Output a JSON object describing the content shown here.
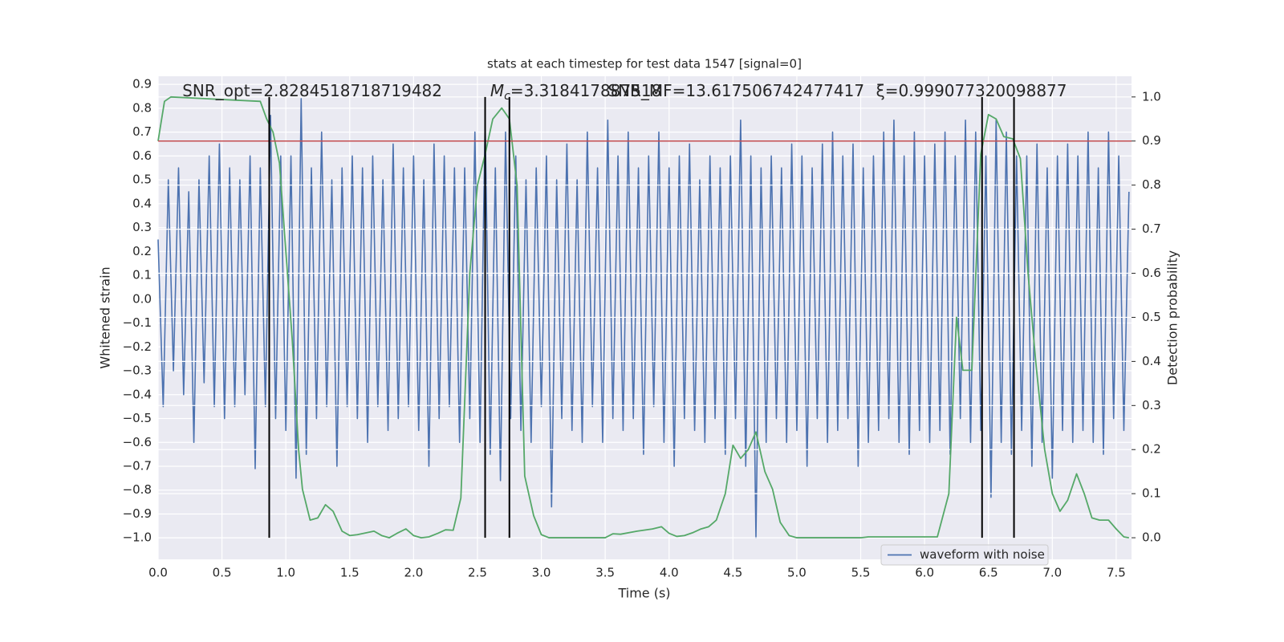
{
  "chart_data": {
    "type": "line",
    "title": "stats at each timestep for test data 1547 [signal=0]",
    "xlabel": "Time (s)",
    "ylabel": "Whitened strain",
    "y2label": "Detection probability",
    "xlim": [
      0,
      7.62
    ],
    "ylim": [
      -1.09,
      0.934
    ],
    "y2lim": [
      -0.049,
      1.047
    ],
    "xticks": [
      {
        "value": 0,
        "label": "0.0"
      },
      0.5,
      {
        "value": 1,
        "label": "1.0"
      },
      1.5,
      {
        "value": 2,
        "label": "2.0"
      },
      2.5,
      {
        "value": 3,
        "label": "3.0"
      },
      3.5,
      {
        "value": 4,
        "label": "4.0"
      },
      4.5,
      {
        "value": 5,
        "label": "5.0"
      },
      5.5,
      {
        "value": 6,
        "label": "6.0"
      },
      6.5,
      {
        "value": 7,
        "label": "7.0"
      },
      7.5
    ],
    "yticks": [
      {
        "value": -1,
        "label": "−1.0"
      },
      {
        "value": -0.9,
        "label": "−0.9"
      },
      {
        "value": -0.8,
        "label": "−0.8"
      },
      {
        "value": -0.7,
        "label": "−0.7"
      },
      {
        "value": -0.6,
        "label": "−0.6"
      },
      {
        "value": -0.5,
        "label": "−0.5"
      },
      {
        "value": -0.4,
        "label": "−0.4"
      },
      {
        "value": -0.3,
        "label": "−0.3"
      },
      {
        "value": -0.2,
        "label": "−0.2"
      },
      {
        "value": -0.1,
        "label": "−0.1"
      },
      {
        "value": 0,
        "label": "0.0"
      },
      0.1,
      0.2,
      0.3,
      0.4,
      0.5,
      0.6,
      0.7,
      0.8,
      0.9
    ],
    "y2ticks": [
      {
        "value": 0,
        "label": "0.0"
      },
      0.1,
      0.2,
      0.3,
      0.4,
      0.5,
      0.6,
      0.7,
      0.8,
      0.9,
      {
        "value": 1,
        "label": "1.0"
      }
    ],
    "grid": true,
    "legend": "lower right",
    "annotations": [
      {
        "text": "SNR_opt=2.8284518718719482",
        "x": 0.19
      },
      {
        "symbol": "M",
        "subscript": "c",
        "text": "=3.318417887518",
        "x": 2.6
      },
      {
        "text": "SNR_MF=13.617506742477417",
        "x": 3.52
      },
      {
        "text": "ξ=0.999077320098877",
        "x": 5.62
      }
    ],
    "hline": {
      "y": 0.9,
      "axis": "y2",
      "color": "#c44e52"
    },
    "vlines": {
      "x": [
        0.87,
        2.56,
        2.75,
        6.45,
        6.7
      ],
      "ymin": 0,
      "ymax": 1,
      "axis": "y2",
      "color": "#000000"
    },
    "series": [
      {
        "name": "waveform with noise",
        "color": "#4c72b0",
        "x": [
          0,
          0.04,
          0.08,
          0.12,
          0.16,
          0.2,
          0.24,
          0.28,
          0.32,
          0.36,
          0.4,
          0.44,
          0.48,
          0.52,
          0.56,
          0.6,
          0.64,
          0.68,
          0.72,
          0.76,
          0.8,
          0.84,
          0.88,
          0.92,
          0.96,
          1,
          1.04,
          1.08,
          1.12,
          1.16,
          1.2,
          1.24,
          1.28,
          1.32,
          1.36,
          1.4,
          1.44,
          1.48,
          1.52,
          1.56,
          1.6,
          1.64,
          1.68,
          1.72,
          1.76,
          1.8,
          1.84,
          1.88,
          1.92,
          1.96,
          2,
          2.04,
          2.08,
          2.12,
          2.16,
          2.2,
          2.24,
          2.28,
          2.32,
          2.36,
          2.4,
          2.44,
          2.48,
          2.52,
          2.56,
          2.6,
          2.64,
          2.68,
          2.72,
          2.76,
          2.8,
          2.84,
          2.88,
          2.92,
          2.96,
          3,
          3.04,
          3.08,
          3.12,
          3.16,
          3.2,
          3.24,
          3.28,
          3.32,
          3.36,
          3.4,
          3.44,
          3.48,
          3.52,
          3.56,
          3.6,
          3.64,
          3.68,
          3.72,
          3.76,
          3.8,
          3.84,
          3.88,
          3.92,
          3.96,
          4,
          4.04,
          4.08,
          4.12,
          4.16,
          4.2,
          4.24,
          4.28,
          4.32,
          4.36,
          4.4,
          4.44,
          4.48,
          4.52,
          4.56,
          4.6,
          4.64,
          4.68,
          4.72,
          4.76,
          4.8,
          4.84,
          4.88,
          4.92,
          4.96,
          5,
          5.04,
          5.08,
          5.12,
          5.16,
          5.2,
          5.24,
          5.28,
          5.32,
          5.36,
          5.4,
          5.44,
          5.48,
          5.52,
          5.56,
          5.6,
          5.64,
          5.68,
          5.72,
          5.76,
          5.8,
          5.84,
          5.88,
          5.92,
          5.96,
          6,
          6.04,
          6.08,
          6.12,
          6.16,
          6.2,
          6.24,
          6.28,
          6.32,
          6.36,
          6.4,
          6.44,
          6.48,
          6.52,
          6.56,
          6.6,
          6.64,
          6.68,
          6.72,
          6.76,
          6.8,
          6.84,
          6.88,
          6.92,
          6.96,
          7,
          7.04,
          7.08,
          7.12,
          7.16,
          7.2,
          7.24,
          7.28,
          7.32,
          7.36,
          7.4,
          7.44,
          7.48,
          7.52,
          7.56,
          7.6
        ],
        "values": [
          0.25,
          -0.45,
          0.5,
          -0.3,
          0.55,
          -0.4,
          0.45,
          -0.6,
          0.5,
          -0.35,
          0.6,
          -0.45,
          0.65,
          -0.5,
          0.55,
          -0.45,
          0.5,
          -0.4,
          0.6,
          -0.71,
          0.55,
          -0.45,
          0.77,
          -0.5,
          0.6,
          -0.55,
          0.6,
          -0.75,
          0.84,
          -0.65,
          0.55,
          -0.5,
          0.7,
          -0.45,
          0.5,
          -0.7,
          0.55,
          -0.45,
          0.6,
          -0.5,
          0.55,
          -0.6,
          0.6,
          -0.45,
          0.5,
          -0.55,
          0.65,
          -0.5,
          0.55,
          -0.45,
          0.6,
          -0.55,
          0.5,
          -0.7,
          0.65,
          -0.5,
          0.6,
          -0.45,
          0.55,
          -0.6,
          0.55,
          -0.5,
          0.7,
          -0.6,
          0.75,
          -0.65,
          0.55,
          -0.76,
          0.7,
          -0.5,
          0.6,
          -0.55,
          0.5,
          -0.6,
          0.55,
          -0.45,
          0.6,
          -0.87,
          0.5,
          -0.5,
          0.65,
          -0.55,
          0.5,
          -0.6,
          0.7,
          -0.45,
          0.55,
          -0.6,
          0.75,
          -0.5,
          0.6,
          -0.55,
          0.7,
          -0.5,
          0.55,
          -0.65,
          0.6,
          -0.45,
          0.7,
          -0.6,
          0.55,
          -0.7,
          0.6,
          -0.5,
          0.65,
          -0.55,
          0.5,
          -0.6,
          0.6,
          -0.5,
          0.55,
          -0.65,
          0.6,
          -0.5,
          0.75,
          -0.7,
          0.6,
          -1.0,
          0.55,
          -0.6,
          0.6,
          -0.5,
          0.55,
          -0.6,
          0.65,
          -0.55,
          0.6,
          -0.7,
          0.55,
          -0.5,
          0.65,
          -0.6,
          0.7,
          -0.55,
          0.6,
          -0.5,
          0.65,
          -0.7,
          0.55,
          -0.6,
          0.6,
          -0.55,
          0.7,
          -0.5,
          0.75,
          -0.6,
          0.6,
          -0.65,
          0.7,
          -0.55,
          0.6,
          -0.6,
          0.65,
          -0.55,
          0.7,
          -0.65,
          0.6,
          -0.5,
          0.75,
          -0.6,
          0.7,
          -0.55,
          0.6,
          -0.83,
          0.75,
          -0.6,
          0.7,
          -0.65,
          0.6,
          -0.55,
          0.6,
          -0.7,
          0.65,
          -0.6,
          0.55,
          -0.75,
          0.6,
          -0.55,
          0.65,
          -0.6,
          0.6,
          -0.55,
          0.7,
          -0.6,
          0.55,
          -0.65,
          0.7,
          -0.5,
          0.6,
          -0.55,
          0.45
        ]
      },
      {
        "color": "#55a868",
        "axis": "y2",
        "x": [
          0,
          0.05,
          0.1,
          0.8,
          0.85,
          0.9,
          0.95,
          1,
          1.05,
          1.1,
          1.13,
          1.19,
          1.25,
          1.31,
          1.37,
          1.44,
          1.5,
          1.56,
          1.69,
          1.75,
          1.81,
          1.87,
          1.94,
          2,
          2.06,
          2.12,
          2.19,
          2.25,
          2.31,
          2.37,
          2.44,
          2.5,
          2.56,
          2.62,
          2.69,
          2.75,
          2.81,
          2.87,
          2.94,
          3,
          3.06,
          3.5,
          3.56,
          3.62,
          3.75,
          3.87,
          3.94,
          4,
          4.06,
          4.12,
          4.19,
          4.25,
          4.31,
          4.37,
          4.44,
          4.5,
          4.56,
          4.62,
          4.68,
          4.75,
          4.81,
          4.87,
          4.94,
          5,
          5.5,
          5.56,
          6.1,
          6.19,
          6.25,
          6.3,
          6.37,
          6.44,
          6.5,
          6.56,
          6.62,
          6.69,
          6.75,
          6.81,
          6.87,
          6.94,
          7,
          7.06,
          7.12,
          7.19,
          7.25,
          7.31,
          7.37,
          7.44,
          7.5,
          7.56,
          7.6
        ],
        "values": [
          0.9,
          0.99,
          1,
          0.99,
          0.95,
          0.92,
          0.85,
          0.65,
          0.45,
          0.2,
          0.11,
          0.04,
          0.045,
          0.075,
          0.06,
          0.015,
          0.005,
          0.007,
          0.015,
          0.005,
          0,
          0.01,
          0.02,
          0.005,
          0,
          0.002,
          0.01,
          0.018,
          0.017,
          0.09,
          0.6,
          0.8,
          0.87,
          0.95,
          0.975,
          0.95,
          0.8,
          0.14,
          0.05,
          0.007,
          0,
          0,
          0.009,
          0.008,
          0.015,
          0.02,
          0.025,
          0.01,
          0.003,
          0.005,
          0.012,
          0.02,
          0.025,
          0.04,
          0.1,
          0.21,
          0.18,
          0.2,
          0.24,
          0.15,
          0.11,
          0.035,
          0.005,
          0,
          0,
          0.002,
          0.002,
          0.1,
          0.5,
          0.38,
          0.38,
          0.87,
          0.96,
          0.95,
          0.91,
          0.905,
          0.86,
          0.6,
          0.4,
          0.2,
          0.1,
          0.06,
          0.085,
          0.145,
          0.1,
          0.045,
          0.04,
          0.04,
          0.02,
          0.002,
          0
        ]
      }
    ]
  }
}
